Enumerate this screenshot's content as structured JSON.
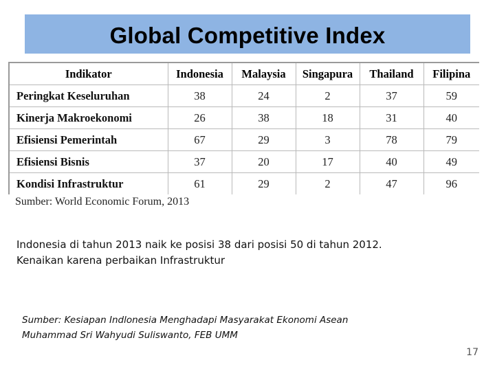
{
  "slide": {
    "title": "Global Competitive Index",
    "page_number": "17",
    "colors": {
      "title_bar": "#8eb4e3"
    }
  },
  "table": {
    "headers": [
      "Indikator",
      "Indonesia",
      "Malaysia",
      "Singapura",
      "Thailand",
      "Filipina"
    ],
    "rows": [
      [
        "Peringkat Keseluruhan",
        "38",
        "24",
        "2",
        "37",
        "59"
      ],
      [
        "Kinerja Makroekonomi",
        "26",
        "38",
        "18",
        "31",
        "40"
      ],
      [
        "Efisiensi Pemerintah",
        "67",
        "29",
        "3",
        "78",
        "79"
      ],
      [
        "Efisiensi Bisnis",
        "37",
        "20",
        "17",
        "40",
        "49"
      ],
      [
        "Kondisi Infrastruktur",
        "61",
        "29",
        "2",
        "47",
        "96"
      ]
    ],
    "source": "Sumber: World Economic Forum, 2013"
  },
  "note": {
    "line1": "Indonesia di tahun 2013 naik ke posisi 38 dari posisi 50 di tahun 2012.",
    "line2": "Kenaikan karena perbaikan Infrastruktur"
  },
  "reference": {
    "line1": "Sumber: Kesiapan Indlonesia Menghadapi Masyarakat Ekonomi Asean",
    "line2": "Muhammad Sri Wahyudi Suliswanto, FEB UMM"
  }
}
